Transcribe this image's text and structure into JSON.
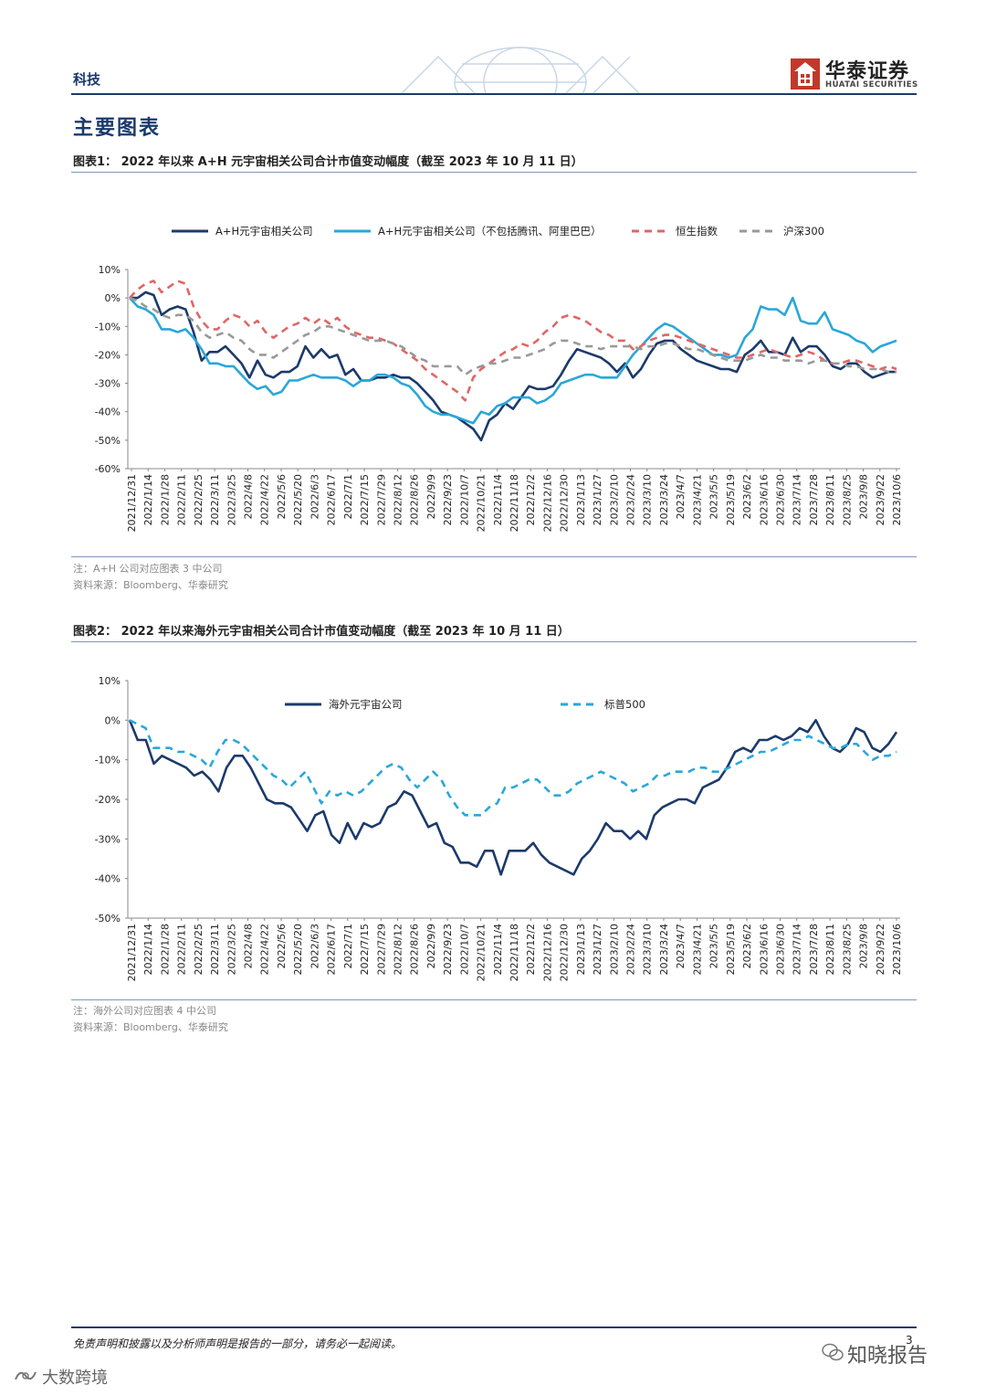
{
  "header": {
    "section_tag": "科技",
    "logo_cn": "华泰证券",
    "logo_en": "HUATAI SECURITIES",
    "brand_color": "#c0392b"
  },
  "page_title": "主要图表",
  "figures": [
    {
      "title": "图表1：  2022 年以来 A+H 元宇宙相关公司合计市值变动幅度（截至 2023 年 10 月 11 日）",
      "note": "注：A+H 公司对应图表 3 中公司",
      "source": "资料来源：Bloomberg、华泰研究"
    },
    {
      "title": "图表2：  2022 年以来海外元宇宙相关公司合计市值变动幅度（截至 2023 年 10 月 11 日）",
      "note": "注：海外公司对应图表 4 中公司",
      "source": "资料来源：Bloomberg、华泰研究"
    }
  ],
  "chart_data": [
    {
      "type": "line",
      "title": "2022 年以来 A+H 元宇宙相关公司合计市值变动幅度（截至 2023 年 10 月 11 日）",
      "ylim": [
        -60,
        10
      ],
      "y_ticks": [
        "10%",
        "0%",
        "-10%",
        "-20%",
        "-30%",
        "-40%",
        "-50%",
        "-60%"
      ],
      "y_tick_values": [
        10,
        0,
        -10,
        -20,
        -30,
        -40,
        -50,
        -60
      ],
      "x_ticks": [
        "2021/12/31",
        "2022/1/14",
        "2022/1/28",
        "2022/2/11",
        "2022/2/25",
        "2022/3/11",
        "2022/3/25",
        "2022/4/8",
        "2022/4/22",
        "2022/5/6",
        "2022/5/20",
        "2022/6/3",
        "2022/6/17",
        "2022/7/1",
        "2022/7/15",
        "2022/7/29",
        "2022/8/12",
        "2022/8/26",
        "2022/9/9",
        "2022/9/23",
        "2022/10/7",
        "2022/10/21",
        "2022/11/4",
        "2022/11/18",
        "2022/12/2",
        "2022/12/16",
        "2022/12/30",
        "2023/1/13",
        "2023/1/27",
        "2023/2/10",
        "2023/2/24",
        "2023/3/10",
        "2023/3/24",
        "2023/4/7",
        "2023/4/21",
        "2023/5/5",
        "2023/5/19",
        "2023/6/2",
        "2023/6/16",
        "2023/6/30",
        "2023/7/14",
        "2023/7/28",
        "2023/8/11",
        "2023/8/25",
        "2023/9/8",
        "2023/9/22",
        "2023/10/6"
      ],
      "legend_position": "top",
      "series": [
        {
          "name": "A+H元宇宙相关公司",
          "color": "#1b3a6b",
          "dash": "solid",
          "values": [
            0,
            0,
            2,
            1,
            -6,
            -4,
            -3,
            -4,
            -12,
            -22,
            -19,
            -19,
            -17,
            -20,
            -23,
            -28,
            -22,
            -27,
            -28,
            -26,
            -26,
            -24,
            -17,
            -21,
            -18,
            -21,
            -20,
            -27,
            -25,
            -29,
            -29,
            -28,
            -28,
            -27,
            -28,
            -28,
            -30,
            -33,
            -36,
            -40,
            -41,
            -42,
            -44,
            -46,
            -50,
            -43,
            -41,
            -37,
            -39,
            -35,
            -31,
            -32,
            -32,
            -31,
            -27,
            -22,
            -18,
            -19,
            -20,
            -21,
            -23,
            -26,
            -23,
            -28,
            -25,
            -20,
            -16,
            -15,
            -15,
            -18,
            -20,
            -22,
            -23,
            -24,
            -25,
            -25,
            -26,
            -20,
            -18,
            -15,
            -19,
            -19,
            -20,
            -14,
            -19,
            -17,
            -17,
            -20,
            -24,
            -25,
            -23,
            -23,
            -26,
            -28,
            -27,
            -26,
            -26
          ]
        },
        {
          "name": "A+H元宇宙相关公司（不包括腾讯、阿里巴巴）",
          "color": "#2aa7d9",
          "dash": "solid",
          "values": [
            0,
            -3,
            -4,
            -6,
            -11,
            -11,
            -12,
            -11,
            -14,
            -18,
            -23,
            -23,
            -24,
            -24,
            -27,
            -30,
            -32,
            -31,
            -34,
            -33,
            -29,
            -29,
            -28,
            -27,
            -28,
            -28,
            -28,
            -29,
            -31,
            -29,
            -29,
            -27,
            -27,
            -28,
            -30,
            -31,
            -34,
            -38,
            -40,
            -41,
            -41,
            -42,
            -43,
            -44,
            -40,
            -41,
            -38,
            -37,
            -35,
            -35,
            -35,
            -37,
            -36,
            -34,
            -30,
            -29,
            -28,
            -27,
            -27,
            -28,
            -28,
            -28,
            -24,
            -20,
            -17,
            -14,
            -11,
            -9,
            -10,
            -12,
            -14,
            -16,
            -18,
            -20,
            -20,
            -21,
            -20,
            -14,
            -11,
            -3,
            -4,
            -4,
            -6,
            0,
            -8,
            -9,
            -9,
            -5,
            -11,
            -12,
            -13,
            -15,
            -16,
            -19,
            -17,
            -16,
            -15
          ]
        },
        {
          "name": "恒生指数",
          "color": "#e06666",
          "dash": "dashed",
          "values": [
            0,
            3,
            5,
            6,
            2,
            4,
            6,
            5,
            -3,
            -8,
            -11,
            -11,
            -8,
            -6,
            -7,
            -10,
            -8,
            -12,
            -14,
            -12,
            -10,
            -9,
            -7,
            -9,
            -7,
            -9,
            -7,
            -10,
            -12,
            -13,
            -14,
            -14,
            -15,
            -16,
            -18,
            -20,
            -22,
            -25,
            -27,
            -29,
            -31,
            -33,
            -36,
            -28,
            -25,
            -23,
            -21,
            -19,
            -18,
            -16,
            -17,
            -15,
            -12,
            -10,
            -7,
            -6,
            -7,
            -8,
            -10,
            -12,
            -13,
            -15,
            -15,
            -18,
            -17,
            -15,
            -14,
            -13,
            -13,
            -14,
            -15,
            -16,
            -17,
            -18,
            -19,
            -20,
            -21,
            -21,
            -20,
            -19,
            -18,
            -19,
            -20,
            -21,
            -20,
            -19,
            -20,
            -22,
            -23,
            -23,
            -22,
            -22,
            -23,
            -24,
            -25,
            -24,
            -25
          ]
        },
        {
          "name": "沪深300",
          "color": "#999999",
          "dash": "dashed",
          "values": [
            0,
            -1,
            -3,
            -4,
            -6,
            -7,
            -6,
            -6,
            -8,
            -12,
            -14,
            -13,
            -12,
            -14,
            -15,
            -18,
            -20,
            -20,
            -21,
            -19,
            -17,
            -15,
            -13,
            -12,
            -10,
            -10,
            -11,
            -12,
            -13,
            -14,
            -15,
            -15,
            -15,
            -16,
            -17,
            -19,
            -21,
            -22,
            -24,
            -24,
            -24,
            -24,
            -27,
            -25,
            -24,
            -23,
            -23,
            -22,
            -21,
            -21,
            -20,
            -19,
            -18,
            -16,
            -15,
            -15,
            -16,
            -17,
            -17,
            -18,
            -17,
            -17,
            -17,
            -17,
            -18,
            -17,
            -17,
            -16,
            -16,
            -17,
            -18,
            -18,
            -19,
            -20,
            -21,
            -22,
            -22,
            -22,
            -21,
            -20,
            -21,
            -21,
            -22,
            -22,
            -22,
            -23,
            -22,
            -22,
            -23,
            -23,
            -24,
            -24,
            -25,
            -25,
            -25,
            -26,
            -26
          ]
        }
      ]
    },
    {
      "type": "line",
      "title": "2022 年以来海外元宇宙相关公司合计市值变动幅度（截至 2023 年 10 月 11 日）",
      "ylim": [
        -50,
        10
      ],
      "y_ticks": [
        "10%",
        "0%",
        "-10%",
        "-20%",
        "-30%",
        "-40%",
        "-50%"
      ],
      "y_tick_values": [
        10,
        0,
        -10,
        -20,
        -30,
        -40,
        -50
      ],
      "x_ticks": [
        "2021/12/31",
        "2022/1/14",
        "2022/1/28",
        "2022/2/11",
        "2022/2/25",
        "2022/3/11",
        "2022/3/25",
        "2022/4/8",
        "2022/4/22",
        "2022/5/6",
        "2022/5/20",
        "2022/6/3",
        "2022/6/17",
        "2022/7/1",
        "2022/7/15",
        "2022/7/29",
        "2022/8/12",
        "2022/8/26",
        "2022/9/9",
        "2022/9/23",
        "2022/10/7",
        "2022/10/21",
        "2022/11/4",
        "2022/11/18",
        "2022/12/2",
        "2022/12/16",
        "2022/12/30",
        "2023/1/13",
        "2023/1/27",
        "2023/2/10",
        "2023/2/24",
        "2023/3/10",
        "2023/3/24",
        "2023/4/7",
        "2023/4/21",
        "2023/5/5",
        "2023/5/19",
        "2023/6/2",
        "2023/6/16",
        "2023/6/30",
        "2023/7/14",
        "2023/7/28",
        "2023/8/11",
        "2023/8/25",
        "2023/9/8",
        "2023/9/22",
        "2023/10/6"
      ],
      "legend_position": "top",
      "series": [
        {
          "name": "海外元宇宙公司",
          "color": "#1b3a6b",
          "dash": "solid",
          "values": [
            0,
            -5,
            -5,
            -11,
            -9,
            -10,
            -11,
            -12,
            -14,
            -13,
            -15,
            -18,
            -12,
            -9,
            -9,
            -12,
            -16,
            -20,
            -21,
            -21,
            -22,
            -25,
            -28,
            -24,
            -23,
            -29,
            -31,
            -26,
            -30,
            -26,
            -27,
            -26,
            -22,
            -21,
            -18,
            -19,
            -23,
            -27,
            -26,
            -31,
            -32,
            -36,
            -36,
            -37,
            -33,
            -33,
            -39,
            -33,
            -33,
            -33,
            -31,
            -34,
            -36,
            -37,
            -38,
            -39,
            -35,
            -33,
            -30,
            -26,
            -28,
            -28,
            -30,
            -28,
            -30,
            -24,
            -22,
            -21,
            -20,
            -20,
            -21,
            -17,
            -16,
            -15,
            -12,
            -8,
            -7,
            -8,
            -5,
            -5,
            -4,
            -5,
            -4,
            -2,
            -3,
            0,
            -4,
            -7,
            -8,
            -6,
            -2,
            -3,
            -7,
            -8,
            -6,
            -3
          ]
        },
        {
          "name": "标普500",
          "color": "#2aa7d9",
          "dash": "dashed",
          "values": [
            0,
            -1,
            -2,
            -7,
            -7,
            -7,
            -8,
            -8,
            -9,
            -10,
            -12,
            -8,
            -5,
            -5,
            -6,
            -8,
            -10,
            -12,
            -14,
            -15,
            -17,
            -15,
            -13,
            -17,
            -21,
            -18,
            -19,
            -18,
            -19,
            -18,
            -16,
            -14,
            -12,
            -11,
            -12,
            -15,
            -17,
            -15,
            -13,
            -15,
            -19,
            -22,
            -24,
            -24,
            -24,
            -22,
            -21,
            -17,
            -17,
            -16,
            -15,
            -15,
            -17,
            -19,
            -19,
            -18,
            -16,
            -15,
            -14,
            -13,
            -14,
            -15,
            -16,
            -18,
            -17,
            -16,
            -14,
            -14,
            -13,
            -13,
            -13,
            -12,
            -12,
            -13,
            -13,
            -12,
            -11,
            -10,
            -9,
            -8,
            -8,
            -7,
            -6,
            -5,
            -5,
            -4,
            -5,
            -6,
            -7,
            -7,
            -6,
            -6,
            -8,
            -10,
            -9,
            -9,
            -8
          ]
        }
      ]
    }
  ],
  "footer": {
    "disclaimer": "免责声明和披露以及分析师声明是报告的一部分，请务必一起阅读。",
    "page_number": "3"
  },
  "watermarks": {
    "right": "知晓报告",
    "left": "大数跨境"
  }
}
